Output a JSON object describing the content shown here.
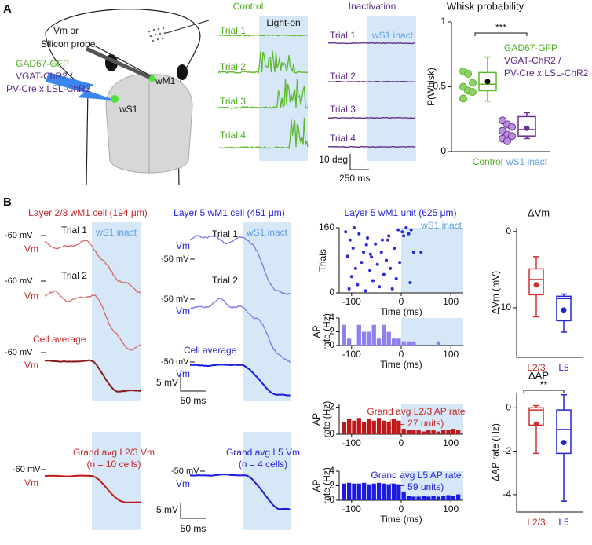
{
  "panel_a": {
    "label": "A",
    "schematic": {
      "probe": [
        "Vm or",
        "Silicon probe"
      ],
      "lines": [
        "GAD67-GFP",
        "VGAT-ChR2 /",
        "PV-Cre x LSL-ChR2"
      ],
      "wm1": "wM1",
      "ws1": "wS1"
    },
    "control": {
      "title": "Control",
      "shade": "Light-on",
      "trials": [
        "Trial 1",
        "Trial 2",
        "Trial 3",
        "Trial 4"
      ]
    },
    "inactivation": {
      "title": "Inactivation",
      "shade": "wS1 inact",
      "trials": [
        "Trial 1",
        "Trial 2",
        "Trial 3",
        "Trial 4"
      ]
    },
    "scale_bar": {
      "y": "10 deg",
      "x": "250 ms"
    }
  },
  "panel_b": {
    "label": "B",
    "l23": {
      "title": "Layer 2/3 wM1 cell (194 μm)",
      "shade": "wS1 inact",
      "trials": [
        "Trial 1",
        "Trial 2"
      ],
      "average": "Cell average",
      "mv": [
        "-60 mV",
        "-60 mV",
        "-60 mV"
      ],
      "vm": [
        "Vm",
        "Vm",
        "Vm"
      ]
    },
    "l5": {
      "title": "Layer 5 wM1 cell (451 μm)",
      "shade": "wS1 inact",
      "trials": [
        "Trial 1",
        "Trial 2"
      ],
      "average": "Cell average",
      "mv": [
        "-50 mV",
        "-50 mV",
        "-50 mV"
      ],
      "vm": [
        "Vm",
        "Vm",
        "Vm"
      ]
    },
    "scale": {
      "y": "5 mV",
      "x": "50 ms"
    },
    "grand_l23": {
      "title": [
        "Grand avg L2/3 Vm",
        "(n = 10 cells)"
      ],
      "mv": "-60 mV",
      "vm": "Vm"
    },
    "grand_l5": {
      "title": [
        "Grand avg L5 Vm",
        "(n = 4 cells)"
      ],
      "mv": "-50 mV",
      "vm": "Vm"
    },
    "grand_scale": {
      "y": "5 mV",
      "x": "50 ms"
    }
  },
  "chart_data": [
    {
      "type": "box",
      "title": "Whisk probability",
      "ylabel": "P(Whisk)",
      "categories": [
        "Control",
        "wS1 inact"
      ],
      "colors": [
        "#5cb82a",
        "#6a2e96"
      ],
      "label_colors": [
        "#4fae22",
        "#5a9fe6"
      ],
      "point_fill": [
        "#8fd16a",
        "#b98fdb"
      ],
      "boxes": [
        {
          "whisker_low": 0.39,
          "q1": 0.47,
          "median": 0.52,
          "q3": 0.61,
          "whisker_high": 0.73,
          "mean": 0.54,
          "points": [
            0.62,
            0.6,
            0.53,
            0.5,
            0.47,
            0.46,
            0.41
          ]
        },
        {
          "whisker_low": 0.1,
          "q1": 0.12,
          "median": 0.17,
          "q3": 0.27,
          "whisker_high": 0.3,
          "mean": 0.18,
          "points": [
            0.24,
            0.21,
            0.19,
            0.16,
            0.13,
            0.12,
            0.1,
            0.08
          ]
        }
      ],
      "ylim": [
        0,
        1
      ],
      "yticks": [
        0,
        0.5,
        1
      ],
      "significance": "***",
      "legend": [
        "GAD67-GFP",
        "VGAT-ChR2 /",
        "PV-Cre x LSL-ChR2"
      ],
      "legend_colors": [
        "#4fae22",
        "#5b2a86",
        "#5b2a86"
      ]
    },
    {
      "type": "raster",
      "title": "Layer 5 wM1 unit (625 μm)",
      "shade_label": "wS1 inact",
      "shade_from": 0,
      "color": "#2a2ad8",
      "xlabel": "Time (ms)",
      "ylabel": "Trials",
      "x": [
        -112,
        -108,
        -103,
        -100,
        -97,
        -92,
        -88,
        -85,
        -80,
        -76,
        -72,
        -68,
        -63,
        -60,
        -57,
        -52,
        -48,
        -44,
        -40,
        -35,
        -30,
        -27,
        -22,
        -18,
        -14,
        -10,
        -6,
        -3,
        2,
        5,
        10,
        18,
        20,
        25,
        -105,
        -62,
        -38,
        -70,
        -95,
        -25,
        15,
        40
      ],
      "values": [
        150,
        90,
        130,
        40,
        110,
        60,
        20,
        145,
        75,
        100,
        5,
        135,
        55,
        88,
        30,
        120,
        70,
        15,
        100,
        45,
        80,
        130,
        60,
        10,
        110,
        35,
        155,
        75,
        150,
        140,
        160,
        25,
        155,
        100,
        10,
        95,
        130,
        118,
        160,
        140,
        145,
        100
      ],
      "xlim": [
        -125,
        125
      ],
      "xticks": [
        -100,
        0,
        100
      ],
      "ylim": [
        0,
        160
      ],
      "yticks": [
        0,
        160
      ]
    },
    {
      "type": "histogram",
      "color": "#8c82ee",
      "xlabel": "Time (ms)",
      "ylabel": [
        "AP",
        "rate (Hz)"
      ],
      "shade_from": 0,
      "bins": [
        -120,
        -110,
        -100,
        -90,
        -80,
        -70,
        -60,
        -50,
        -40,
        -30,
        -20,
        -10,
        0,
        10,
        20,
        30,
        40,
        50,
        60,
        70,
        80,
        90,
        100,
        110,
        120
      ],
      "values": [
        3,
        1,
        0,
        3,
        2,
        2,
        3,
        1,
        3,
        2,
        1,
        1,
        0.6,
        0.6,
        0.6,
        0,
        0,
        0,
        0,
        0.6,
        0,
        0,
        0,
        0
      ],
      "xlim": [
        -125,
        125
      ],
      "xticks": [
        -100,
        0,
        100
      ],
      "ylim": [
        0,
        4
      ],
      "yticks": [
        0,
        2,
        4
      ]
    },
    {
      "type": "histogram",
      "color": "#c01818",
      "title": [
        "Grand avg L2/3 AP rate",
        "(n = 27 units)"
      ],
      "title_color": "#c62828",
      "ylabel": [
        "AP",
        "rate (Hz)"
      ],
      "shade_from": 0,
      "bins": [
        -120,
        -110,
        -100,
        -90,
        -80,
        -70,
        -60,
        -50,
        -40,
        -30,
        -20,
        -10,
        0,
        10,
        20,
        30,
        40,
        50,
        60,
        70,
        80,
        90,
        100,
        110,
        120
      ],
      "values": [
        0.9,
        1.1,
        1.0,
        1.2,
        0.9,
        1.1,
        1.0,
        1.2,
        1.0,
        0.9,
        1.1,
        1.0,
        0.4,
        0.3,
        0.3,
        0.3,
        0.2,
        0.3,
        0.3,
        0.2,
        0.3,
        0.3,
        0.4,
        0.3
      ],
      "xlim": [
        -125,
        125
      ],
      "xticks": [
        -100,
        0,
        100
      ],
      "ylim": [
        0,
        2.2
      ],
      "yticks": [
        0,
        2
      ]
    },
    {
      "type": "histogram",
      "color": "#1a1ae0",
      "title": [
        "Grand avg L5 AP rate",
        "(n = 59 units)"
      ],
      "title_color": "#2323d8",
      "xlabel": "Time (ms)",
      "ylabel": [
        "AP",
        "rate (Hz)"
      ],
      "shade_from": 0,
      "bins": [
        -120,
        -110,
        -100,
        -90,
        -80,
        -70,
        -60,
        -50,
        -40,
        -30,
        -20,
        -10,
        0,
        10,
        20,
        30,
        40,
        50,
        60,
        70,
        80,
        90,
        100,
        110,
        120
      ],
      "values": [
        2.3,
        2.4,
        2.3,
        2.3,
        2.4,
        2.2,
        2.3,
        2.4,
        2.3,
        2.2,
        2.3,
        2.2,
        1.2,
        0.6,
        0.5,
        0.5,
        0.6,
        0.5,
        0.6,
        0.5,
        0.6,
        0.7,
        0.6,
        0.8
      ],
      "xlim": [
        -125,
        125
      ],
      "xticks": [
        -100,
        0,
        100
      ],
      "ylim": [
        0,
        4
      ],
      "yticks": [
        0,
        2,
        4
      ]
    },
    {
      "type": "box",
      "title": "ΔVm",
      "ylabel": "ΔVm (mV)",
      "categories": [
        "L2/3",
        "L5"
      ],
      "colors": [
        "#d03030",
        "#2323d8"
      ],
      "label_colors": [
        "#c62828",
        "#2323d8"
      ],
      "boxes": [
        {
          "whisker_low": -11.2,
          "q1": -8.3,
          "median": -6.3,
          "q3": -4.9,
          "whisker_high": -3.3,
          "mean": -7.0
        },
        {
          "whisker_low": -13.2,
          "q1": -11.7,
          "median": -8.8,
          "q3": -8.5,
          "whisker_high": -8.2,
          "mean": -10.3
        }
      ],
      "ylim": [
        -16.5,
        0.5
      ],
      "yticks": [
        0,
        -10
      ]
    },
    {
      "type": "box",
      "title": "ΔAP",
      "ylabel": "ΔAP rate (Hz)",
      "categories": [
        "L2/3",
        "L5"
      ],
      "colors": [
        "#d03030",
        "#2323d8"
      ],
      "label_colors": [
        "#c62828",
        "#2323d8"
      ],
      "boxes": [
        {
          "whisker_low": -2.1,
          "q1": -0.8,
          "median": -0.1,
          "q3": 0.0,
          "whisker_high": 0.1,
          "mean": -0.75
        },
        {
          "whisker_low": -4.3,
          "q1": -2.1,
          "median": -1.0,
          "q3": -0.1,
          "whisker_high": 0.6,
          "mean": -1.6
        }
      ],
      "ylim": [
        -4.8,
        0.7
      ],
      "yticks": [
        0,
        -2,
        -4
      ],
      "significance": "**"
    }
  ]
}
